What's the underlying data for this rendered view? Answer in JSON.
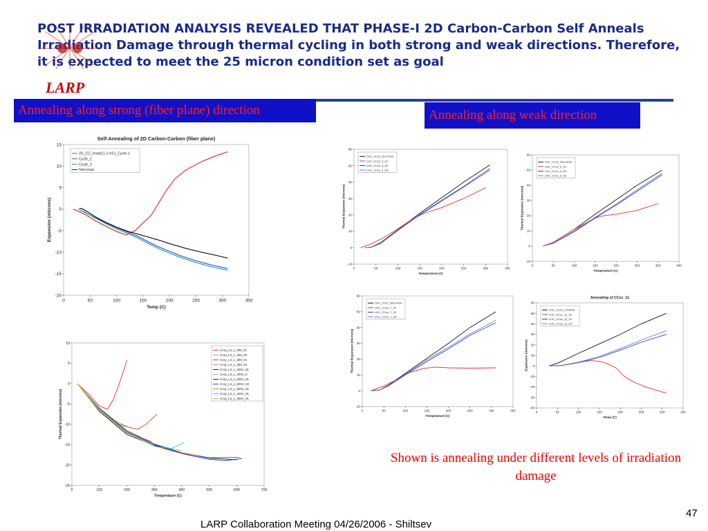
{
  "header": {
    "headline": "POST IRRADIATION ANALYSIS REVEALED THAT PHASE-I 2D Carbon-Carbon Self Anneals Irradiation Damage through thermal cycling in both strong and weak directions. Therefore, it is expected to meet the 25 micron condition set as goal",
    "logo_text": "LARP"
  },
  "labels": {
    "strong": "Annealing along strong (fiber plane) direction",
    "weak": "Annealing along weak direction",
    "note": "Shown is annealing under different levels of irradiation damage"
  },
  "footer": {
    "text": "LARP Collaboration Meeting 04/26/2006 - Shiltsev",
    "page": "47"
  },
  "colors": {
    "headline": "#1a2b8a",
    "accent_red": "#cc0000",
    "box_blue": "#1010c8",
    "box_text": "#ff2020"
  },
  "chart_data": [
    {
      "type": "line",
      "title": "Self-Annealing of 2D Carbon-Carbon (fiber plane)",
      "xlabel": "Temp (C)",
      "ylabel": "Expansion (microns)",
      "xlim": [
        0,
        350
      ],
      "ylim": [
        -20,
        15
      ],
      "xticks": [
        "0",
        "50",
        "100",
        "150",
        "200",
        "250",
        "300",
        "350"
      ],
      "yticks": [
        "15",
        "10",
        "5",
        "0",
        "-5",
        "-10",
        "-15",
        "-20"
      ],
      "legend": "top-left",
      "series": [
        {
          "name": "2D_CC_Irrad(11.3 mC)_Cycle-1",
          "color": "#e03030",
          "x": [
            18,
            40,
            60,
            80,
            100,
            118,
            135,
            150,
            165,
            180,
            195,
            210,
            230,
            260,
            290,
            310
          ],
          "y": [
            0,
            -1.2,
            -2.7,
            -4,
            -5.2,
            -6,
            -5,
            -3.2,
            -1.5,
            1.5,
            4.5,
            7,
            9,
            11,
            12.5,
            13.3
          ]
        },
        {
          "name": "Cycle_2",
          "color": "#3050d0",
          "x": [
            28,
            40,
            60,
            80,
            100,
            120,
            140,
            160,
            180,
            200,
            220,
            250,
            280,
            310
          ],
          "y": [
            0,
            -0.8,
            -2,
            -3.2,
            -4.3,
            -5.3,
            -6.3,
            -7.6,
            -8.8,
            -9.8,
            -10.8,
            -12,
            -13,
            -13.8
          ]
        },
        {
          "name": "Cycle_3",
          "color": "#20a0a0",
          "x": [
            28,
            40,
            60,
            80,
            100,
            120,
            140,
            160,
            180,
            200,
            220,
            250,
            280,
            310
          ],
          "y": [
            0,
            -0.7,
            -2.1,
            -3.4,
            -4.6,
            -5.6,
            -6.7,
            -8,
            -9.2,
            -10.2,
            -11.2,
            -12.4,
            -13.4,
            -14.2
          ]
        },
        {
          "name": "Non-irrad",
          "color": "#111111",
          "x": [
            30,
            35,
            45,
            60,
            80,
            100,
            120,
            140,
            160,
            180,
            200,
            230,
            260,
            290,
            310
          ],
          "y": [
            0.2,
            0.1,
            -0.6,
            -1.8,
            -3.1,
            -4.2,
            -5.1,
            -5.8,
            -6.5,
            -7.2,
            -8,
            -9.1,
            -10,
            -10.8,
            -11.4
          ]
        }
      ]
    },
    {
      "type": "line",
      "title": "",
      "xlabel": "Temperature (C)",
      "ylabel": "Thermal Expansion (microns)",
      "xlim": [
        0,
        700
      ],
      "ylim": [
        -25,
        10
      ],
      "xticks": [
        "0",
        "100",
        "200",
        "300",
        "400",
        "500",
        "600",
        "700"
      ],
      "yticks": [
        "10",
        "5",
        "0",
        "-5",
        "-10",
        "-15",
        "-20",
        "-25"
      ],
      "legend": "top-right",
      "series": [
        {
          "name": "Ccsy_L3_1_200_01",
          "color": "#dd3030",
          "x": [
            20,
            60,
            100,
            130,
            150,
            170,
            190,
            200
          ],
          "y": [
            0,
            -2.5,
            -5.5,
            -6.3,
            -4,
            -0.5,
            3.5,
            5.8
          ]
        },
        {
          "name": "Ccsy_L3_1_200_03",
          "color": "#a0a0a0",
          "x": [
            20,
            80,
            140,
            200
          ],
          "y": [
            0,
            -5,
            -8.5,
            -10.5
          ]
        },
        {
          "name": "Ccsy_L3_1_300_01",
          "color": "#b05020",
          "x": [
            20,
            80,
            150,
            210,
            240,
            270,
            310
          ],
          "y": [
            0,
            -5,
            -9.5,
            -10.8,
            -11.2,
            -10,
            -7.5
          ]
        },
        {
          "name": "Ccsy_L3_1_300_03",
          "color": "#e060c0",
          "x": [
            20,
            100,
            200,
            290
          ],
          "y": [
            0,
            -6.5,
            -12,
            -14.2
          ]
        },
        {
          "name": "Ccsy_L3_1_200A_01",
          "color": "#202020",
          "x": [
            20,
            100,
            200,
            300,
            400,
            500,
            600
          ],
          "y": [
            0,
            -6.8,
            -12.5,
            -15.2,
            -17,
            -18.3,
            -18.7
          ]
        },
        {
          "name": "Ccsy_L3_1_200A_0",
          "color": "#80c080",
          "x": [
            20,
            100,
            200,
            300,
            400
          ],
          "y": [
            0,
            -6.6,
            -12.2,
            -15,
            -16.5
          ]
        },
        {
          "name": "Ccsy_L3_1_600A_01",
          "color": "#1020a0",
          "x": [
            20,
            100,
            200,
            300,
            400,
            500,
            560,
            620
          ],
          "y": [
            0,
            -6.2,
            -11.8,
            -15,
            -17.2,
            -18.6,
            -18.9,
            -18.4
          ]
        },
        {
          "name": "Ccsy_L3_1_600A_03",
          "color": "#306090",
          "x": [
            20,
            100,
            200,
            300,
            400,
            500,
            610
          ],
          "y": [
            0,
            -6,
            -11.5,
            -14.8,
            -17,
            -18.2,
            -18.1
          ]
        },
        {
          "name": "Ccsy_L3_1_500A_01",
          "color": "#e07030",
          "x": [
            20,
            100,
            200,
            300,
            400,
            460
          ],
          "y": [
            0,
            -6.3,
            -12,
            -15.3,
            -17.2,
            -17.7
          ]
        },
        {
          "name": "Ccsy_L3_1_400A_01",
          "color": "#30c0e0",
          "x": [
            20,
            100,
            200,
            300,
            360,
            410
          ],
          "y": [
            0,
            -6.4,
            -12.1,
            -15.4,
            -16,
            -14.5
          ]
        },
        {
          "name": "Ccsy_L3_1_300A_01",
          "color": "#e0c020",
          "x": [
            20,
            100,
            200,
            300
          ],
          "y": [
            0,
            -6.5,
            -12.2,
            -15.2
          ]
        }
      ]
    },
    {
      "type": "line",
      "title": "",
      "xlabel": "Temperature (C)",
      "ylabel": "Thermal Expansion (microns)",
      "xlim": [
        0,
        350
      ],
      "ylim": [
        -10,
        60
      ],
      "xticks": [
        "0",
        "50",
        "100",
        "150",
        "200",
        "250",
        "300",
        "350"
      ],
      "yticks": [
        "60",
        "50",
        "40",
        "30",
        "20",
        "10",
        "0",
        "-10"
      ],
      "legend": "top-left",
      "series": [
        {
          "name": "LHC_CCzz_Non-irrad",
          "color": "#111111",
          "x": [
            25,
            40,
            60,
            100,
            150,
            200,
            250,
            310
          ],
          "y": [
            0,
            0.5,
            3,
            11,
            21,
            30.5,
            40,
            50.5
          ]
        },
        {
          "name": "LHC_CCzz_4_01",
          "color": "#e03030",
          "x": [
            15,
            40,
            70,
            100,
            130,
            160,
            200,
            250,
            300
          ],
          "y": [
            0,
            2.5,
            6.5,
            11.5,
            17,
            21,
            24.5,
            30,
            36.5
          ]
        },
        {
          "name": "LHC_CCzz_4_02",
          "color": "#2040c0",
          "x": [
            25,
            40,
            60,
            100,
            150,
            200,
            250,
            310
          ],
          "y": [
            0,
            0.3,
            2.5,
            10.5,
            20,
            28.5,
            37,
            47.5
          ]
        },
        {
          "name": "LHC_CCzz_4_03",
          "color": "#7070c0",
          "x": [
            25,
            40,
            60,
            100,
            150,
            200,
            250,
            310
          ],
          "y": [
            0,
            0.4,
            2.7,
            10.8,
            20.3,
            29,
            37.5,
            48.5
          ]
        }
      ]
    },
    {
      "type": "line",
      "title": "",
      "xlabel": "Temperature (C)",
      "ylabel": "Thermal Expansion (microns)",
      "xlim": [
        0,
        350
      ],
      "ylim": [
        -10,
        60
      ],
      "xticks": [
        "0",
        "50",
        "100",
        "150",
        "200",
        "250",
        "300",
        "350"
      ],
      "yticks": [
        "60",
        "50",
        "40",
        "30",
        "20",
        "10",
        "0",
        "-10"
      ],
      "legend": "top-left",
      "series": [
        {
          "name": "LHC_CCzz_Non-irrad",
          "color": "#111111",
          "x": [
            25,
            50,
            100,
            150,
            200,
            250,
            310
          ],
          "y": [
            0,
            2.5,
            11,
            21,
            30.5,
            40,
            50
          ]
        },
        {
          "name": "LHC_CCzz_6_01",
          "color": "#e03030",
          "x": [
            25,
            50,
            100,
            130,
            150,
            170,
            200,
            250,
            300
          ],
          "y": [
            0,
            2.5,
            11,
            15.5,
            18.5,
            20,
            21,
            23.5,
            28
          ]
        },
        {
          "name": "LHC_CCzz_6_02",
          "color": "#2040c0",
          "x": [
            25,
            50,
            100,
            150,
            200,
            250,
            310
          ],
          "y": [
            0,
            1.8,
            9.5,
            18.5,
            27,
            36,
            47
          ]
        },
        {
          "name": "LHC_CCzz_6_03",
          "color": "#7070c0",
          "x": [
            25,
            50,
            100,
            150,
            200,
            250,
            310
          ],
          "y": [
            0,
            2,
            10,
            19,
            27.5,
            37,
            48
          ]
        }
      ]
    },
    {
      "type": "line",
      "title": "",
      "xlabel": "Temperature (C)",
      "ylabel": "Thermal Expansion (microns)",
      "xlim": [
        0,
        350
      ],
      "ylim": [
        -10,
        60
      ],
      "xticks": [
        "0",
        "50",
        "100",
        "150",
        "200",
        "250",
        "300",
        "350"
      ],
      "yticks": [
        "60",
        "50",
        "40",
        "30",
        "20",
        "10",
        "0",
        "-10"
      ],
      "legend": "top-left",
      "series": [
        {
          "name": "LHC_CCzz_Non-irrad",
          "color": "#111111",
          "x": [
            20,
            40,
            60,
            100,
            150,
            200,
            250,
            310
          ],
          "y": [
            0,
            0.5,
            3.5,
            11,
            20.5,
            30,
            40,
            50
          ]
        },
        {
          "name": "LHC_CCzz_7_01",
          "color": "#e03030",
          "x": [
            20,
            50,
            80,
            110,
            140,
            170,
            200,
            250,
            310
          ],
          "y": [
            0,
            3,
            7,
            11.5,
            14,
            15,
            14.5,
            14.3,
            14.5
          ]
        },
        {
          "name": "LHC_CCzz_7_02",
          "color": "#2040c0",
          "x": [
            25,
            40,
            60,
            100,
            150,
            200,
            250,
            310
          ],
          "y": [
            0,
            0.4,
            3,
            10,
            18.5,
            26.5,
            35,
            43
          ]
        },
        {
          "name": "LHC_CCzz_7_03",
          "color": "#7070c0",
          "x": [
            25,
            40,
            60,
            100,
            150,
            200,
            250,
            310
          ],
          "y": [
            0,
            0.5,
            3.2,
            10.5,
            19.5,
            27.5,
            36,
            44.5
          ]
        }
      ]
    },
    {
      "type": "line",
      "title": "Annealing of CCzz_11",
      "xlabel": "Temp (C)",
      "ylabel": "Expansion (microns)",
      "xlim": [
        0,
        350
      ],
      "ylim": [
        -40,
        60
      ],
      "xticks": [
        "0",
        "50",
        "100",
        "150",
        "200",
        "250",
        "300",
        "350"
      ],
      "yticks": [
        "60",
        "50",
        "40",
        "30",
        "20",
        "10",
        "0",
        "-10",
        "-20",
        "-30",
        "-40"
      ],
      "legend": "top-left",
      "series": [
        {
          "name": "LHC_CCzz_nonirrad",
          "color": "#111111",
          "x": [
            30,
            50,
            100,
            150,
            200,
            250,
            310
          ],
          "y": [
            0,
            2.5,
            12,
            21,
            30,
            40,
            50
          ]
        },
        {
          "name": "LHC_CCzz_11_01",
          "color": "#e03030",
          "x": [
            30,
            60,
            100,
            130,
            150,
            170,
            190,
            210,
            230,
            260,
            310
          ],
          "y": [
            0,
            0.5,
            3.5,
            5,
            4.5,
            2,
            -2,
            -10,
            -15,
            -20,
            -26
          ]
        },
        {
          "name": "LHC_CCzz_11_02",
          "color": "#2040c0",
          "x": [
            30,
            60,
            100,
            150,
            200,
            250,
            310
          ],
          "y": [
            0,
            0.3,
            3,
            8,
            15,
            22.5,
            30
          ]
        },
        {
          "name": "LHC_CCzz_11_03",
          "color": "#7070c0",
          "x": [
            30,
            60,
            100,
            150,
            200,
            250,
            310
          ],
          "y": [
            0,
            0.5,
            3.5,
            9,
            16.5,
            24.5,
            33.5
          ]
        }
      ]
    }
  ]
}
